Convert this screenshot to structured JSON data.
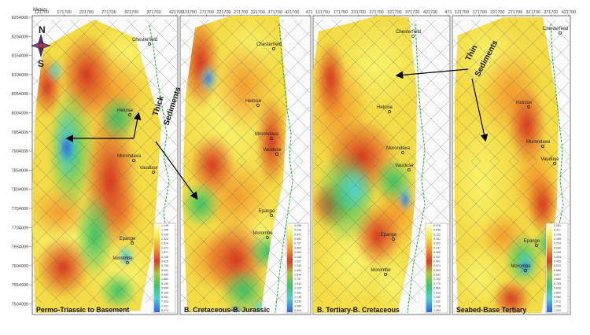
{
  "axis_label": "Meters",
  "x_ticks": {
    "p1": [
      "121700",
      "171700",
      "221700",
      "271700",
      "321700",
      "371700",
      "421700"
    ],
    "p2": [
      "121700",
      "171700",
      "221700",
      "271700",
      "321700",
      "371700",
      "421700",
      "471"
    ],
    "p3": [
      "121700",
      "171700",
      "221700",
      "271700",
      "321700",
      "371700",
      "421700",
      "471"
    ],
    "p4": [
      "121700",
      "171700",
      "221700",
      "271700",
      "321700",
      "371700",
      "421700"
    ]
  },
  "y_ticks": [
    "8254009",
    "8204009",
    "8154009",
    "8104009",
    "8054009",
    "8004009",
    "7954009",
    "7904009",
    "7854009",
    "7804009",
    "7754009",
    "7704009",
    "7654009",
    "7604009",
    "7554009",
    "7504009"
  ],
  "compass": {
    "north": "N",
    "south": "S"
  },
  "panels": [
    {
      "title": "Permo-Triassic to Basement",
      "places": [
        "Chesterfield",
        "Heloise",
        "Morondava",
        "Vauduse",
        "Epange",
        "Morombe"
      ],
      "legend": [
        "1.149",
        "1.406",
        "2.026",
        "2.322",
        "2.514",
        "2.672",
        "2.871",
        "3.145",
        "3.415",
        "3.736",
        "4.091",
        "4.459",
        "4.862",
        "5.240",
        "5.655",
        "6.036",
        "6.501",
        "7.023",
        "7.921",
        "8.474"
      ]
    },
    {
      "title": "B. Cretaceous-B. Jurassic",
      "places": [
        "Chesterfield",
        "Heloise",
        "Morondava",
        "Vauduse",
        "Epange",
        "Morombe"
      ],
      "legend": [
        "0.096",
        "0.236",
        "0.421",
        "0.584",
        "0.727",
        "0.862",
        "0.993",
        "1.108",
        "1.222",
        "1.340",
        "1.463",
        "1.594",
        "1.737",
        "1.910",
        "2.124",
        "2.393",
        "2.745",
        "3.253",
        "4.009",
        "5.519"
      ]
    },
    {
      "title": "B. Tertiary-B. Cretaceous",
      "places": [
        "Chesterfield",
        "Heloise",
        "Morondava",
        "Vauduse",
        "Epange",
        "Morombe"
      ],
      "legend": [
        "0.076",
        "0.096",
        "0.122",
        "0.162",
        "0.203",
        "0.247",
        "0.285",
        "0.337",
        "0.401",
        "0.474",
        "0.553",
        "0.632",
        "0.702",
        "0.779",
        "0.866",
        "1.014",
        "1.230",
        "1.532",
        "1.718",
        "1.953"
      ]
    },
    {
      "title": "Seabed-Base Tertiary",
      "places": [
        "Chesterfield",
        "Heloise",
        "Morondava",
        "Vauduse",
        "Epange",
        "Morombe"
      ],
      "legend": [
        "0.081",
        "0.117",
        "0.149",
        "0.189",
        "0.234",
        "0.280",
        "0.335",
        "0.393",
        "0.455",
        "0.510",
        "0.566",
        "0.627",
        "0.690",
        "0.753",
        "0.818",
        "0.890",
        "0.960",
        "1.012",
        "1.098",
        "1.241"
      ]
    }
  ],
  "annotations": {
    "thick": [
      "Thick",
      "Sediments"
    ],
    "thin": [
      "Thin",
      "Sediments"
    ]
  },
  "colors": {
    "yellow": "#f6ef52",
    "orange": "#f39a2c",
    "red": "#dc3a1f",
    "green": "#3cc46a",
    "cyan": "#4fd2cf",
    "blue": "#2a62e6",
    "coastline": "#1fb13c"
  }
}
